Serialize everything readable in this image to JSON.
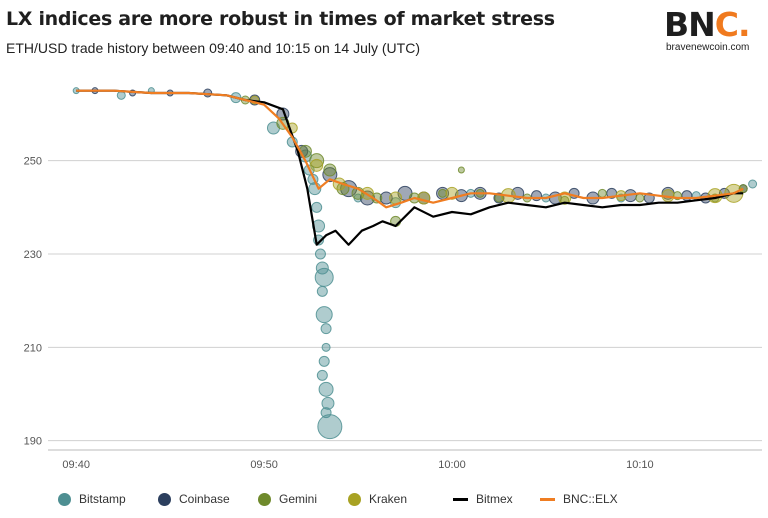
{
  "header": {
    "title": "LX indices are more robust in times of market stress",
    "subtitle": "ETH/USD trade history between 09:40 and 10:15 on 14 July (UTC)"
  },
  "logo": {
    "text_main": "BN",
    "text_accent": "C.",
    "url": "bravenewcoin.com",
    "accent_color": "#f07a1e"
  },
  "colors": {
    "Bitstamp": "#4e8f92",
    "Coinbase": "#2c3f5e",
    "Gemini": "#6f8a2c",
    "Kraken": "#a8a223",
    "Bitmex": "#000000",
    "BNC::ELX": "#ef7d22",
    "grid": "#d0d0d0",
    "axis": "#bbbbbb"
  },
  "chart_data": {
    "type": "scatter",
    "title": "LX indices are more robust in times of market stress",
    "subtitle": "ETH/USD trade history between 09:40 and 10:15 on 14 July (UTC)",
    "x_ticks": [
      "09:40",
      "09:50",
      "10:00",
      "10:10"
    ],
    "x_tick_minutes": [
      0,
      10,
      20,
      30
    ],
    "xlim_minutes": [
      -1.5,
      36.5
    ],
    "y_ticks": [
      190,
      210,
      230,
      250
    ],
    "ylim": [
      188,
      269
    ],
    "grid": "horizontal",
    "legend_placement": "bottom",
    "legend": [
      "Bitstamp",
      "Coinbase",
      "Gemini",
      "Kraken",
      "Bitmex",
      "BNC::ELX"
    ],
    "series": [
      {
        "name": "Bitmex",
        "type": "line",
        "x": [
          0,
          2,
          4,
          6,
          8,
          9,
          10,
          11,
          11.8,
          12.3,
          12.8,
          13.3,
          13.8,
          14.5,
          15.2,
          15.8,
          16.3,
          17,
          18,
          19,
          20,
          21,
          22,
          23,
          24,
          25,
          26,
          27,
          28,
          29,
          30,
          31,
          32,
          33,
          34,
          35,
          35.5
        ],
        "y": [
          265,
          265,
          264.5,
          264.5,
          264,
          263,
          262.5,
          261,
          252,
          244,
          232,
          234,
          235,
          232,
          235,
          236,
          237,
          236,
          240,
          238,
          239,
          238.5,
          240,
          241,
          240.5,
          240,
          241,
          240.5,
          240,
          240.5,
          240.5,
          241,
          241,
          241.5,
          242,
          243,
          243
        ]
      },
      {
        "name": "BNC::ELX",
        "type": "line",
        "x": [
          0,
          2,
          4,
          6,
          8,
          9,
          10,
          10.8,
          11.5,
          12.2,
          12.9,
          13.5,
          14.2,
          15,
          15.8,
          16.5,
          17.3,
          18,
          19,
          20,
          21,
          22,
          23,
          24,
          25,
          26,
          27,
          28,
          29,
          30,
          31,
          32,
          33,
          34,
          35,
          35.5
        ],
        "y": [
          265,
          265,
          264.5,
          264.5,
          264,
          263,
          262,
          259,
          255,
          250,
          244,
          246,
          245,
          244,
          242,
          240,
          241,
          242,
          241,
          242,
          243,
          243,
          242.5,
          242,
          242,
          243,
          242,
          242,
          242.5,
          243,
          242.5,
          242,
          242,
          242.5,
          243,
          244
        ]
      },
      {
        "name": "Bitstamp",
        "type": "bubble",
        "x": [
          0,
          2.4,
          4,
          8.5,
          10.5,
          11.5,
          12.2,
          12.4,
          12.6,
          12.7,
          12.8,
          12.9,
          12.9,
          13,
          13.1,
          13.2,
          13.1,
          13.2,
          13.3,
          13.3,
          13.2,
          13.1,
          13.3,
          13.4,
          13.3,
          13.5,
          15,
          17,
          21,
          25,
          29,
          33,
          36
        ],
        "y": [
          265,
          264,
          265,
          263.5,
          257,
          254,
          251,
          248,
          246,
          244,
          240,
          236,
          233,
          230,
          227,
          225,
          222,
          217,
          214,
          210,
          207,
          204,
          201,
          198,
          196,
          193,
          242,
          241,
          243,
          242,
          242,
          242.5,
          245
        ],
        "size": [
          3,
          4,
          3,
          5,
          6,
          5,
          6,
          5,
          5,
          6,
          5,
          6,
          5,
          5,
          6,
          9,
          5,
          8,
          5,
          4,
          5,
          5,
          7,
          6,
          5,
          12,
          4,
          5,
          4,
          4,
          4,
          4,
          4
        ]
      },
      {
        "name": "Coinbase",
        "type": "bubble",
        "x": [
          1,
          3,
          5,
          7,
          9.5,
          11,
          12,
          13.5,
          14.5,
          15.5,
          16.5,
          17.5,
          18.5,
          19.5,
          20.5,
          21.5,
          22.5,
          23.5,
          24.5,
          25.5,
          26.5,
          27.5,
          28.5,
          29.5,
          30.5,
          31.5,
          32.5,
          33.5,
          34.5,
          35.5
        ],
        "y": [
          265,
          264.5,
          264.5,
          264.5,
          263,
          260,
          252,
          247,
          244,
          242,
          242,
          243,
          242,
          243,
          242.5,
          243,
          242,
          243,
          242.5,
          242,
          243,
          242,
          243,
          242.5,
          242,
          243,
          242.5,
          242,
          243,
          244
        ],
        "size": [
          3,
          3,
          3,
          4,
          5,
          6,
          6,
          7,
          8,
          7,
          6,
          7,
          6,
          6,
          6,
          6,
          5,
          6,
          5,
          6,
          5,
          6,
          5,
          6,
          5,
          6,
          5,
          5,
          5,
          4
        ]
      },
      {
        "name": "Gemini",
        "type": "bubble",
        "x": [
          9,
          11,
          12.2,
          12.8,
          13.5,
          14.2,
          15,
          16,
          17,
          18,
          19.5,
          20.5,
          21.5,
          22.5,
          24,
          26,
          28,
          30,
          32,
          34,
          35.5
        ],
        "y": [
          263,
          258,
          252,
          250,
          248,
          244,
          243,
          242,
          237,
          242,
          243,
          248,
          243,
          242,
          242,
          241.5,
          243,
          242,
          242.5,
          242,
          244
        ],
        "size": [
          4,
          6,
          6,
          7,
          6,
          6,
          6,
          5,
          5,
          5,
          4,
          3,
          4,
          4,
          4,
          4,
          4,
          4,
          4,
          4,
          4
        ]
      },
      {
        "name": "Kraken",
        "type": "bubble",
        "x": [
          9.5,
          11.5,
          12.8,
          14,
          15.5,
          17,
          18.5,
          20,
          23,
          26,
          29,
          31.5,
          34,
          35
        ],
        "y": [
          263,
          257,
          249,
          245,
          243,
          242,
          242,
          243,
          242.5,
          242,
          242.5,
          242.5,
          242.5,
          243
        ],
        "size": [
          4,
          5,
          6,
          6,
          6,
          6,
          6,
          6,
          7,
          6,
          5,
          6,
          7,
          9
        ]
      }
    ]
  }
}
